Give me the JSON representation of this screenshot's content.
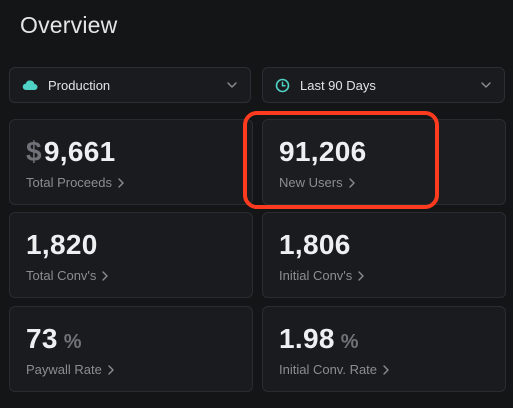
{
  "header": {
    "title": "Overview"
  },
  "filters": {
    "environment": {
      "label": "Production",
      "icon": "cloud-icon",
      "icon_color": "#4fd1c5"
    },
    "date_range": {
      "label": "Last 90 Days",
      "icon": "clock-icon",
      "icon_color": "#4fd1c5"
    }
  },
  "metrics": [
    {
      "prefix": "$",
      "value": "9,661",
      "suffix": "",
      "label": "Total Proceeds"
    },
    {
      "prefix": "",
      "value": "91,206",
      "suffix": "",
      "label": "New Users"
    },
    {
      "prefix": "",
      "value": "1,820",
      "suffix": "",
      "label": "Total Conv's"
    },
    {
      "prefix": "",
      "value": "1,806",
      "suffix": "",
      "label": "Initial Conv's"
    },
    {
      "prefix": "",
      "value": "73",
      "suffix": "%",
      "label": "Paywall Rate"
    },
    {
      "prefix": "",
      "value": "1.98",
      "suffix": "%",
      "label": "Initial Conv. Rate"
    }
  ],
  "colors": {
    "background": "#141517",
    "card": "#1a1b1e",
    "accent": "#4fd1c5",
    "highlight": "#ff3b1f"
  }
}
